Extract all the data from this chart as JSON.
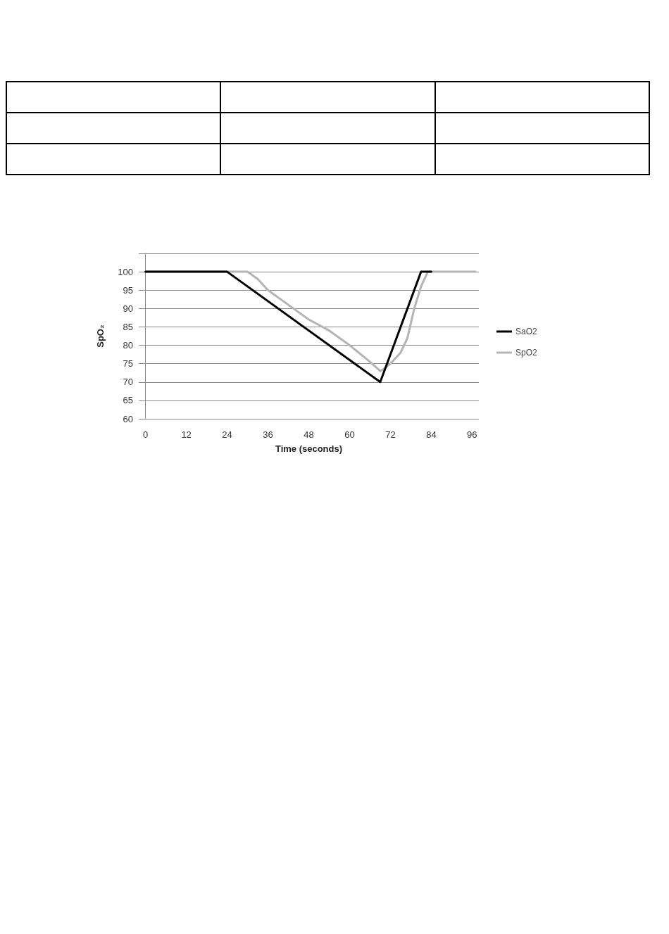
{
  "chart_data": {
    "type": "line",
    "xlabel": "Time (seconds)",
    "ylabel": "SpO₂",
    "xlim": [
      -2,
      98
    ],
    "xticks": [
      0,
      12,
      24,
      36,
      48,
      60,
      72,
      84,
      96
    ],
    "ylim": [
      60,
      105
    ],
    "yticks": [
      60,
      65,
      70,
      75,
      80,
      85,
      90,
      95,
      100,
      {
        "value": 105,
        "label": null
      }
    ],
    "grid": "y",
    "legend": "right",
    "marker": "none",
    "line_style": "solid",
    "series": [
      {
        "name": "SaO2",
        "color": "#000000",
        "x": [
          0,
          24,
          69,
          81,
          84
        ],
        "values": [
          100,
          100,
          70,
          100,
          100
        ]
      },
      {
        "name": "SpO2",
        "color": "#b4b4b4",
        "x": [
          0,
          24,
          30,
          33,
          36,
          42,
          48,
          54,
          60,
          66,
          69,
          70,
          72,
          75,
          77,
          79,
          81,
          83,
          97
        ],
        "values": [
          100,
          100,
          100,
          98,
          95,
          91,
          87,
          84,
          80,
          75.5,
          73,
          73.5,
          75,
          78,
          82,
          90,
          96,
          100,
          100
        ]
      }
    ]
  }
}
